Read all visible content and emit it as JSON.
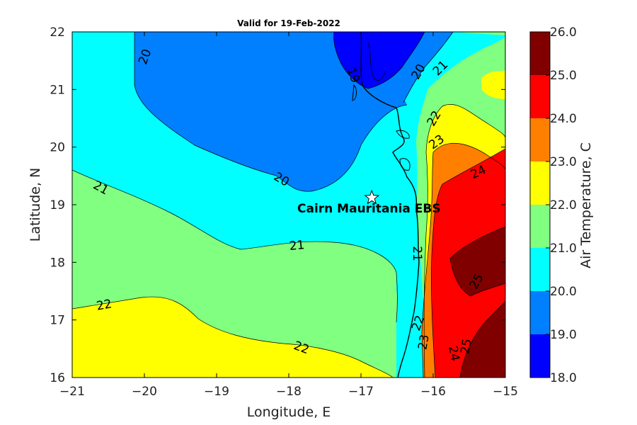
{
  "title": "Valid for 19-Feb-2022",
  "xlabel": "Longitude, E",
  "ylabel": "Latitude, N",
  "x_ticks": [
    "-21",
    "-20",
    "-19",
    "-18",
    "-17",
    "-16",
    "-15"
  ],
  "y_ticks": [
    "16",
    "17",
    "18",
    "19",
    "20",
    "21",
    "22"
  ],
  "colorbar": {
    "label": "Air Temperature, C",
    "ticks": [
      "18.0",
      "19.0",
      "20.0",
      "21.0",
      "22.0",
      "23.0",
      "24.0",
      "25.0",
      "26.0"
    ],
    "colors": [
      "#0000ff",
      "#0080ff",
      "#00ffff",
      "#80ff80",
      "#ffff00",
      "#ff8000",
      "#ff0000",
      "#800000"
    ]
  },
  "station": {
    "name": "Cairn Mauritania EBS",
    "lon": -16.85,
    "lat": 19.12,
    "icon": "star-icon"
  },
  "contour_labels": [
    "20",
    "19",
    "20",
    "21",
    "22",
    "23",
    "24",
    "20",
    "21",
    "21",
    "21",
    "22",
    "22",
    "22",
    "23",
    "24",
    "25",
    "25"
  ],
  "chart_data": {
    "type": "heatmap",
    "title": "Valid for 19-Feb-2022",
    "xlabel": "Longitude, E",
    "ylabel": "Latitude, N",
    "xlim": [
      -21,
      -15
    ],
    "ylim": [
      16,
      22
    ],
    "colorbar_range": [
      18,
      26
    ],
    "colorbar_label": "Air Temperature, C",
    "contour_levels": [
      19,
      20,
      21,
      22,
      23,
      24,
      25
    ],
    "station": {
      "name": "Cairn Mauritania EBS",
      "lon": -16.85,
      "lat": 19.12
    }
  }
}
